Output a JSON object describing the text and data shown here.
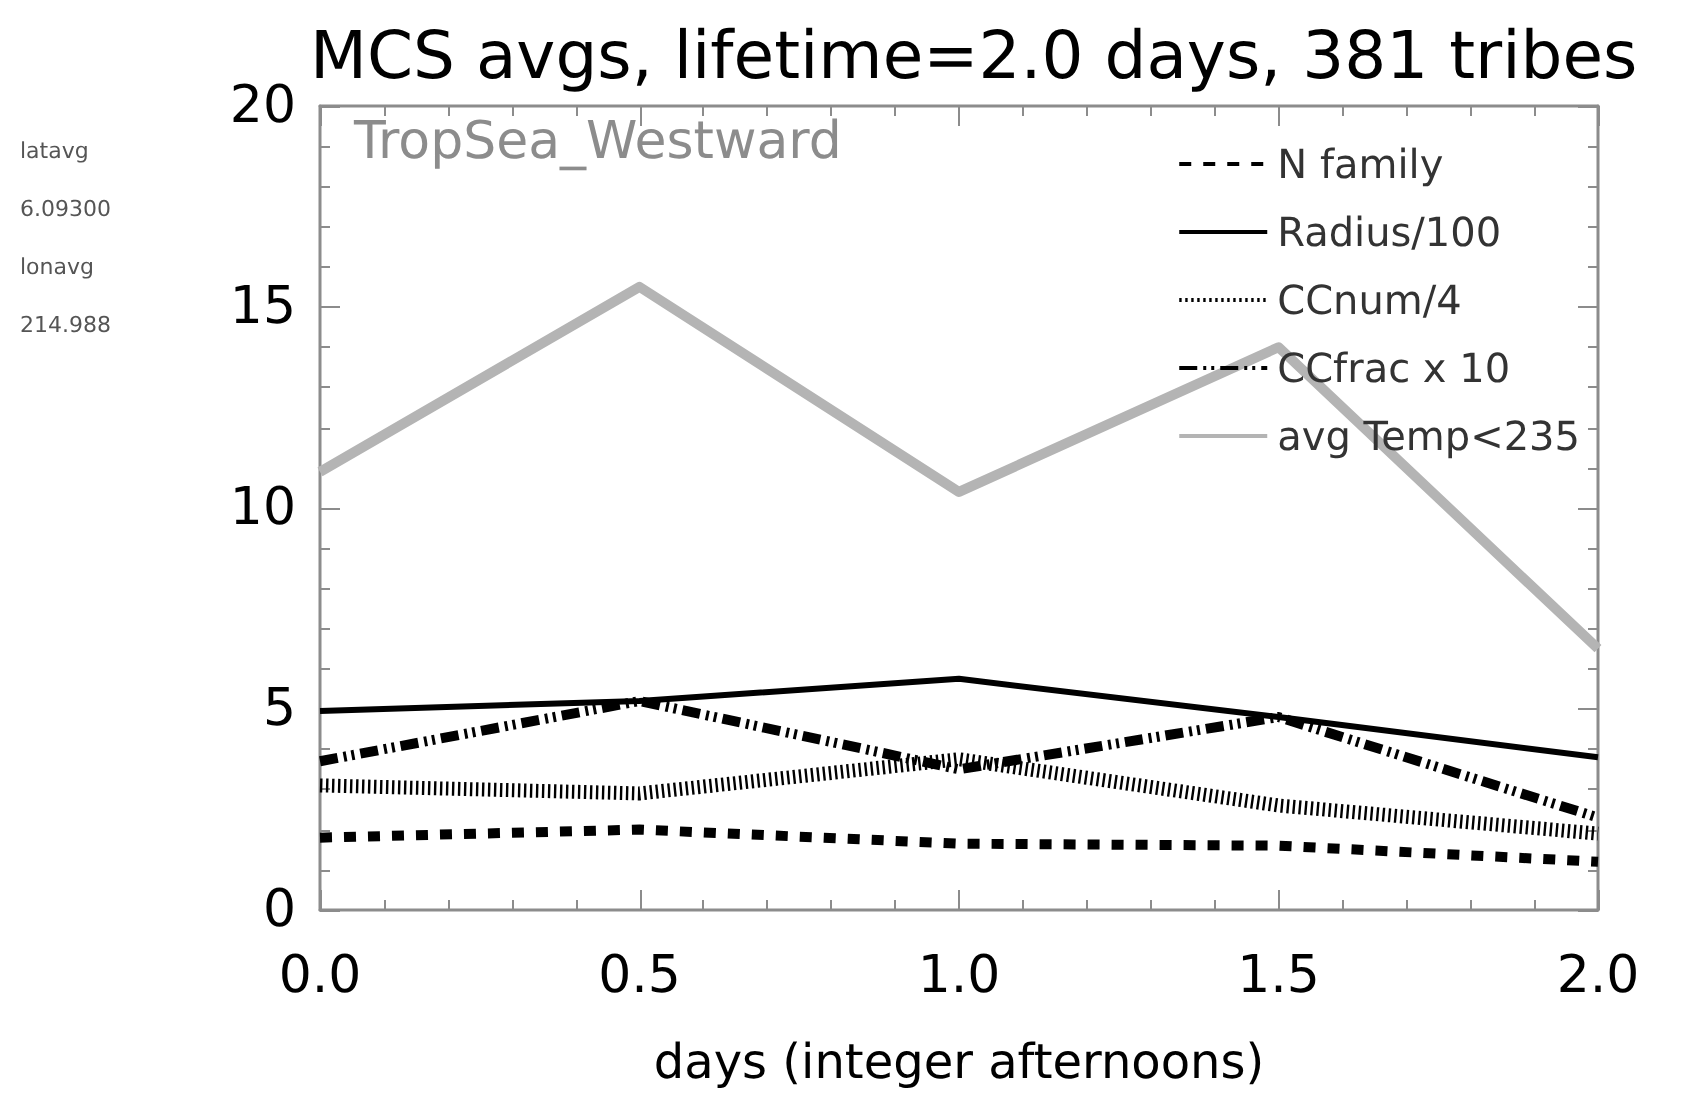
{
  "chart_data": {
    "type": "line",
    "title": "MCS avgs, lifetime=2.0 days, 381 tribes",
    "xlabel": "days (integer afternoons)",
    "annotations": [
      "TropSea_Westward",
      "latavg",
      "6.09300",
      "lonavg",
      "214.988"
    ],
    "x": [
      0,
      0.5,
      1,
      1.5,
      2
    ],
    "series": [
      {
        "name": "N family",
        "color": "#000000",
        "line_style": "dashed",
        "values": [
          1.8,
          2.0,
          1.65,
          1.6,
          1.2
        ]
      },
      {
        "name": "Radius/100",
        "color": "#000000",
        "line_style": "solid",
        "values": [
          4.95,
          5.2,
          5.75,
          4.8,
          3.8
        ]
      },
      {
        "name": "CCnum/4",
        "color": "#000000",
        "line_style": "dotted",
        "values": [
          3.1,
          2.9,
          3.75,
          2.6,
          1.9
        ]
      },
      {
        "name": "CCfrac x 10",
        "color": "#000000",
        "line_style": "dashdot",
        "values": [
          3.7,
          5.2,
          3.5,
          4.8,
          2.3
        ]
      },
      {
        "name": "avg Temp<235",
        "color": "#b4b4b4",
        "line_style": "solid",
        "values": [
          10.9,
          15.5,
          10.4,
          14.0,
          6.5
        ]
      }
    ],
    "xlim": [
      0,
      2
    ],
    "xticks": [
      {
        "value": 0,
        "label": "0.0"
      },
      0.5,
      {
        "value": 1,
        "label": "1.0"
      },
      1.5,
      {
        "value": 2,
        "label": "2.0"
      }
    ],
    "ylim": [
      0,
      20
    ],
    "yticks": [
      0,
      5,
      10,
      15,
      20
    ],
    "grid": false,
    "legend": "top right",
    "marker": "none"
  }
}
